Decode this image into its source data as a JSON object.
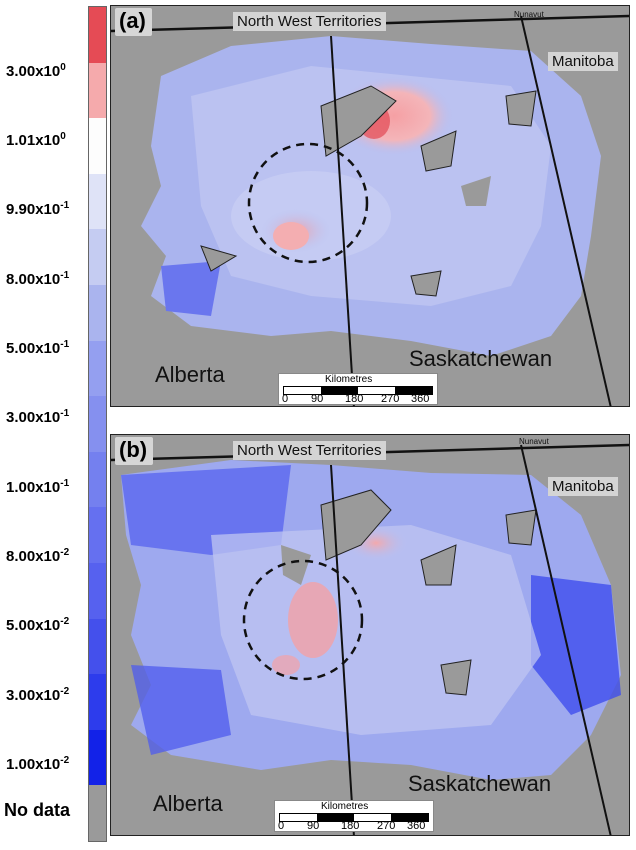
{
  "legend": {
    "colors": [
      "#e54b55",
      "#f5aaac",
      "#fdfdfd",
      "#dfe3f7",
      "#c5ccf2",
      "#aab4ee",
      "#949ff0",
      "#8590ef",
      "#7480ef",
      "#6570f0",
      "#5661ef",
      "#4450ec",
      "#2d3cec",
      "#1222e8",
      "#9a9a9a"
    ],
    "labels": [
      "3.00x10",
      "1.01x10",
      "9.90x10",
      "8.00x10",
      "5.00x10",
      "3.00x10",
      "1.00x10",
      "8.00x10",
      "5.00x10",
      "3.00x10",
      "1.00x10"
    ],
    "exponents": [
      "0",
      "0",
      "-1",
      "-1",
      "-1",
      "-1",
      "-1",
      "-2",
      "-2",
      "-2",
      "-2"
    ],
    "no_data_label": "No data"
  },
  "panels": [
    {
      "letter": "(a)",
      "territories_label": "North West Territories",
      "manitoba_label": "Manitoba",
      "nunavut_label": "Nunavut",
      "alberta_label": "Alberta",
      "saskatchewan_label": "Saskatchewan",
      "scale_title": "Kilometres",
      "scale_ticks": [
        "0",
        "90",
        "180",
        "270",
        "360"
      ]
    },
    {
      "letter": "(b)",
      "territories_label": "North West Territories",
      "manitoba_label": "Manitoba",
      "nunavut_label": "Nunavut",
      "alberta_label": "Alberta",
      "saskatchewan_label": "Saskatchewan",
      "scale_title": "Kilometres",
      "scale_ticks": [
        "0",
        "90",
        "180",
        "270",
        "360"
      ]
    }
  ]
}
